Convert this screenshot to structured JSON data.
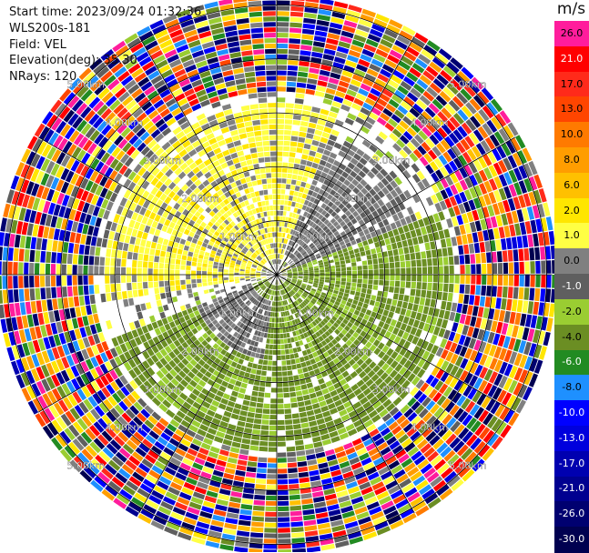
{
  "info": {
    "start_time": "Start time: 2023/09/24 01:32:36",
    "instrument": "WLS200s-181",
    "field": "Field: VEL",
    "elevation": "Elevation(deg): 35.30",
    "nrays": "NRays: 120"
  },
  "colorbar": {
    "unit": "m/s",
    "bins": [
      {
        "label": "26.0",
        "color": "#ff1d9c",
        "text_color": "#000000"
      },
      {
        "label": "21.0",
        "color": "#ff0000",
        "text_color": "#ffffff"
      },
      {
        "label": "17.0",
        "color": "#ff2a1a",
        "text_color": "#000000"
      },
      {
        "label": "13.0",
        "color": "#ff4500",
        "text_color": "#000000"
      },
      {
        "label": "10.0",
        "color": "#ff7a00",
        "text_color": "#000000"
      },
      {
        "label": "8.0",
        "color": "#ff9d00",
        "text_color": "#000000"
      },
      {
        "label": "6.0",
        "color": "#ffc000",
        "text_color": "#000000"
      },
      {
        "label": "2.0",
        "color": "#ffe600",
        "text_color": "#000000"
      },
      {
        "label": "1.0",
        "color": "#ffff44",
        "text_color": "#000000"
      },
      {
        "label": "0.0",
        "color": "#808080",
        "text_color": "#000000"
      },
      {
        "label": "-1.0",
        "color": "#5f5f5f",
        "text_color": "#ffffff"
      },
      {
        "label": "-2.0",
        "color": "#9acd32",
        "text_color": "#000000"
      },
      {
        "label": "-4.0",
        "color": "#6b8e23",
        "text_color": "#000000"
      },
      {
        "label": "-6.0",
        "color": "#228b22",
        "text_color": "#ffffff"
      },
      {
        "label": "-8.0",
        "color": "#1e90ff",
        "text_color": "#000000"
      },
      {
        "label": "-10.0",
        "color": "#0000ff",
        "text_color": "#ffffff"
      },
      {
        "label": "-13.0",
        "color": "#0000dd",
        "text_color": "#ffffff"
      },
      {
        "label": "-17.0",
        "color": "#0000b0",
        "text_color": "#ffffff"
      },
      {
        "label": "-21.0",
        "color": "#000090",
        "text_color": "#ffffff"
      },
      {
        "label": "-26.0",
        "color": "#000070",
        "text_color": "#ffffff"
      },
      {
        "label": "-30.0",
        "color": "#000050",
        "text_color": "#ffffff"
      }
    ]
  },
  "chart_data": {
    "type": "heatmap",
    "projection": "polar",
    "field": "VEL",
    "units": "m/s",
    "nrays": 120,
    "elevation_deg": 35.3,
    "range_rings_km": [
      1,
      2,
      3,
      4,
      5
    ],
    "range_ring_labels": [
      "1.00km",
      "2.00km",
      "3.00km",
      "4.00km",
      "5.00km"
    ],
    "azimuth_spokes_deg": [
      0,
      30,
      60,
      90,
      120,
      150,
      180,
      210,
      240,
      270,
      300,
      330
    ],
    "max_range_km": 5.1,
    "valid_data_range_km": [
      0,
      3.4
    ],
    "regions": [
      {
        "azimuth_deg": [
          260,
          20
        ],
        "range_km": [
          0.3,
          3.2
        ],
        "velocity_ms": 1.5
      },
      {
        "azimuth_deg": [
          20,
          70
        ],
        "range_km": [
          0.4,
          2.8
        ],
        "velocity_ms": 0.0
      },
      {
        "azimuth_deg": [
          70,
          250
        ],
        "range_km": [
          0.2,
          3.3
        ],
        "velocity_ms": -2.5
      },
      {
        "azimuth_deg": [
          190,
          250
        ],
        "range_km": [
          0.5,
          1.6
        ],
        "velocity_ms": 0.0
      }
    ],
    "outer_noise_range_km": [
      3.4,
      5.1
    ]
  }
}
